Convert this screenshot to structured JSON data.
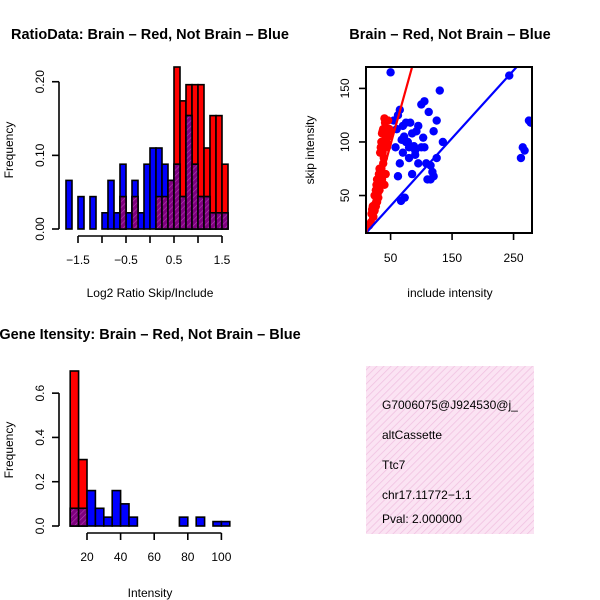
{
  "chart_data": [
    {
      "type": "bar",
      "id": "ratio",
      "title": "RatioData: Brain – Red, Not Brain – Blue",
      "xlabel": "Log2 Ratio Skip/Include",
      "ylabel": "Frequency",
      "xlim": [
        -1.75,
        1.75
      ],
      "ylim": [
        0,
        0.22
      ],
      "xticks": [
        -1.5,
        -1.0,
        -0.5,
        0.0,
        0.5,
        1.0,
        1.5
      ],
      "xtick_labels": [
        "−1.5",
        "",
        "−0.5",
        "",
        "0.5",
        "",
        "1.5"
      ],
      "yticks": [
        0.0,
        0.1,
        0.2
      ],
      "ytick_labels": [
        "0.00",
        "0.10",
        "0.20"
      ],
      "bin_width": 0.125,
      "series": [
        {
          "name": "Not Brain",
          "color": "#0000ff",
          "bins": [
            {
              "x0": -1.75,
              "v": 0.066
            },
            {
              "x0": -1.5,
              "v": 0.044
            },
            {
              "x0": -1.25,
              "v": 0.044
            },
            {
              "x0": -1.0,
              "v": 0.022
            },
            {
              "x0": -0.875,
              "v": 0.066
            },
            {
              "x0": -0.75,
              "v": 0.022
            },
            {
              "x0": -0.625,
              "v": 0.088
            },
            {
              "x0": -0.5,
              "v": 0.022
            },
            {
              "x0": -0.375,
              "v": 0.066
            },
            {
              "x0": -0.25,
              "v": 0.022
            },
            {
              "x0": -0.125,
              "v": 0.088
            },
            {
              "x0": 0.0,
              "v": 0.11
            },
            {
              "x0": 0.125,
              "v": 0.11
            },
            {
              "x0": 0.25,
              "v": 0.088
            },
            {
              "x0": 0.375,
              "v": 0.066
            },
            {
              "x0": 0.5,
              "v": 0.088
            },
            {
              "x0": 0.625,
              "v": 0.044
            },
            {
              "x0": 0.75,
              "v": 0.154
            },
            {
              "x0": 0.875,
              "v": 0.088
            },
            {
              "x0": 1.0,
              "v": 0.044
            },
            {
              "x0": 1.125,
              "v": 0.044
            },
            {
              "x0": 1.25,
              "v": 0.022
            },
            {
              "x0": 1.375,
              "v": 0.022
            },
            {
              "x0": 1.5,
              "v": 0.022
            }
          ]
        },
        {
          "name": "Brain",
          "color": "#ff0000",
          "bins": [
            {
              "x0": -0.625,
              "v": 0.044
            },
            {
              "x0": -0.375,
              "v": 0.044
            },
            {
              "x0": 0.125,
              "v": 0.044
            },
            {
              "x0": 0.25,
              "v": 0.044
            },
            {
              "x0": 0.375,
              "v": 0.066
            },
            {
              "x0": 0.5,
              "v": 0.22
            },
            {
              "x0": 0.625,
              "v": 0.174
            },
            {
              "x0": 0.75,
              "v": 0.196
            },
            {
              "x0": 0.875,
              "v": 0.196
            },
            {
              "x0": 1.0,
              "v": 0.196
            },
            {
              "x0": 1.125,
              "v": 0.11
            },
            {
              "x0": 1.25,
              "v": 0.154
            },
            {
              "x0": 1.375,
              "v": 0.154
            },
            {
              "x0": 1.5,
              "v": 0.088
            }
          ]
        }
      ]
    },
    {
      "type": "scatter",
      "id": "scatter",
      "title": "Brain – Red, Not Brain – Blue",
      "xlabel": "include intensity",
      "ylabel": "skip intensity",
      "xlim": [
        10,
        280
      ],
      "ylim": [
        15,
        170
      ],
      "xticks": [
        50,
        150,
        250
      ],
      "xtick_labels": [
        "50",
        "150",
        "250"
      ],
      "yticks": [
        50,
        100,
        150
      ],
      "ytick_labels": [
        "50",
        "100",
        "150"
      ],
      "series": [
        {
          "name": "Brain",
          "color": "#ff0000",
          "fit_line": {
            "x": [
              10,
              85
            ],
            "y": [
              15,
              170
            ]
          },
          "points": [
            [
              15,
              22
            ],
            [
              18,
              25
            ],
            [
              19,
              33
            ],
            [
              20,
              37
            ],
            [
              21,
              40
            ],
            [
              22,
              38
            ],
            [
              23,
              35
            ],
            [
              24,
              50
            ],
            [
              26,
              55
            ],
            [
              27,
              60
            ],
            [
              28,
              65
            ],
            [
              30,
              60
            ],
            [
              31,
              70
            ],
            [
              32,
              75
            ],
            [
              33,
              90
            ],
            [
              34,
              95
            ],
            [
              35,
              100
            ],
            [
              36,
              108
            ],
            [
              37,
              110
            ],
            [
              38,
              112
            ],
            [
              39,
              85
            ],
            [
              40,
              122
            ],
            [
              41,
              118
            ],
            [
              42,
              105
            ],
            [
              43,
              100
            ],
            [
              44,
              112
            ],
            [
              45,
              98
            ],
            [
              46,
              120
            ],
            [
              38,
              80
            ],
            [
              36,
              65
            ],
            [
              34,
              70
            ],
            [
              32,
              55
            ],
            [
              30,
              48
            ],
            [
              28,
              44
            ],
            [
              26,
              40
            ],
            [
              24,
              36
            ],
            [
              22,
              30
            ],
            [
              40,
              60
            ],
            [
              42,
              70
            ],
            [
              44,
              95
            ],
            [
              46,
              105
            ],
            [
              48,
              112
            ],
            [
              50,
              110
            ],
            [
              35,
              75
            ],
            [
              37,
              90
            ],
            [
              29,
              52
            ],
            [
              27,
              45
            ],
            [
              25,
              42
            ]
          ]
        },
        {
          "name": "Not Brain",
          "color": "#0000ff",
          "fit_line": {
            "x": [
              10,
              255
            ],
            "y": [
              15,
              170
            ]
          },
          "points": [
            [
              50,
              165
            ],
            [
              55,
              120
            ],
            [
              60,
              112
            ],
            [
              62,
              125
            ],
            [
              65,
              130
            ],
            [
              68,
              102
            ],
            [
              70,
              115
            ],
            [
              72,
              105
            ],
            [
              75,
              118
            ],
            [
              78,
              100
            ],
            [
              80,
              95
            ],
            [
              82,
              118
            ],
            [
              85,
              108
            ],
            [
              88,
              96
            ],
            [
              90,
              92
            ],
            [
              95,
              115
            ],
            [
              100,
              135
            ],
            [
              103,
              104
            ],
            [
              105,
              138
            ],
            [
              110,
              65
            ],
            [
              112,
              128
            ],
            [
              115,
              78
            ],
            [
              118,
              72
            ],
            [
              120,
              110
            ],
            [
              125,
              120
            ],
            [
              130,
              148
            ],
            [
              135,
              100
            ],
            [
              58,
              95
            ],
            [
              62,
              68
            ],
            [
              75,
              100
            ],
            [
              80,
              85
            ],
            [
              90,
              88
            ],
            [
              100,
              95
            ],
            [
              67,
              45
            ],
            [
              73,
              48
            ],
            [
              243,
              162
            ],
            [
              262,
              85
            ],
            [
              265,
              95
            ],
            [
              268,
              92
            ],
            [
              275,
              120
            ],
            [
              278,
              118
            ],
            [
              105,
              95
            ],
            [
              115,
              65
            ],
            [
              95,
              80
            ],
            [
              120,
              68
            ],
            [
              85,
              70
            ],
            [
              70,
              90
            ],
            [
              65,
              80
            ],
            [
              92,
              110
            ],
            [
              108,
              80
            ],
            [
              125,
              85
            ]
          ]
        }
      ]
    },
    {
      "type": "bar",
      "id": "intensity",
      "title": "Gene Itensity: Brain – Red, Not Brain – Blue",
      "xlabel": "Intensity",
      "ylabel": "Frequency",
      "xlim": [
        7.5,
        107.5
      ],
      "ylim": [
        0,
        0.7
      ],
      "xticks": [
        20,
        40,
        60,
        80,
        100
      ],
      "xtick_labels": [
        "20",
        "40",
        "60",
        "80",
        "100"
      ],
      "yticks": [
        0.0,
        0.2,
        0.4,
        0.6
      ],
      "ytick_labels": [
        "0.0",
        "0.2",
        "0.4",
        "0.6"
      ],
      "bin_width": 5,
      "series": [
        {
          "name": "Not Brain",
          "color": "#0000ff",
          "bins": [
            {
              "x0": 10,
              "v": 0.08
            },
            {
              "x0": 15,
              "v": 0.08
            },
            {
              "x0": 20,
              "v": 0.16
            },
            {
              "x0": 25,
              "v": 0.08
            },
            {
              "x0": 30,
              "v": 0.04
            },
            {
              "x0": 35,
              "v": 0.16
            },
            {
              "x0": 40,
              "v": 0.1
            },
            {
              "x0": 45,
              "v": 0.04
            },
            {
              "x0": 75,
              "v": 0.04
            },
            {
              "x0": 85,
              "v": 0.04
            },
            {
              "x0": 95,
              "v": 0.02
            },
            {
              "x0": 100,
              "v": 0.02
            }
          ]
        },
        {
          "name": "Brain",
          "color": "#ff0000",
          "bins": [
            {
              "x0": 10,
              "v": 0.7
            },
            {
              "x0": 15,
              "v": 0.3
            }
          ]
        }
      ]
    }
  ],
  "info": {
    "event_id": "G7006075@J924530@j_",
    "event_type": "altCassette",
    "gene": "Ttc7",
    "location": "chr17.11772−1.1",
    "pval": "Pval: 2.000000",
    "pval_color": "#aa0000"
  }
}
